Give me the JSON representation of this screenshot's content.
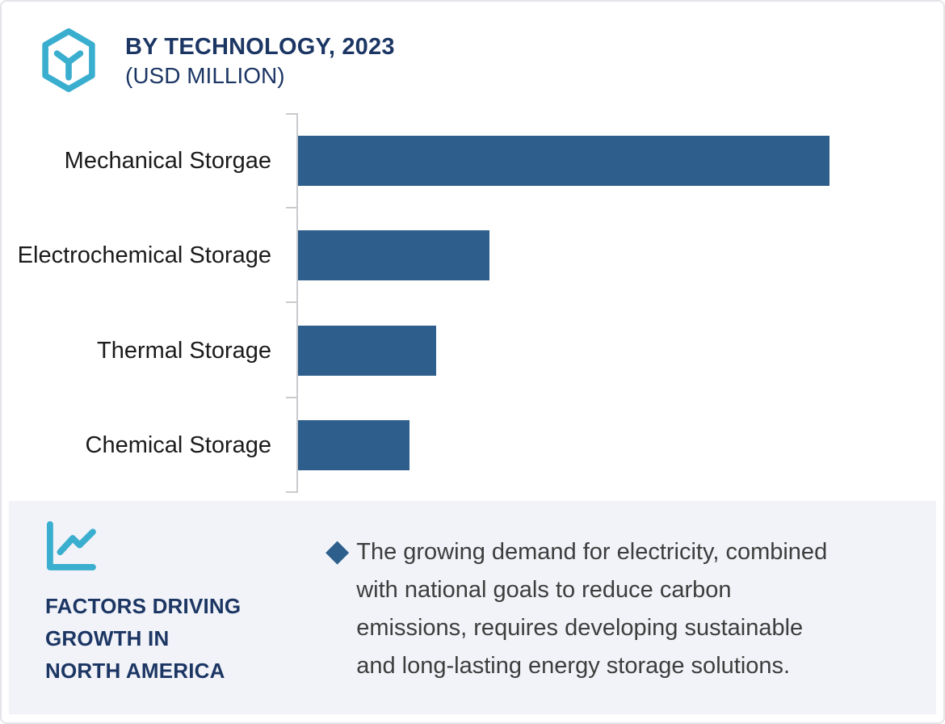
{
  "card": {
    "border_color": "#e3e5e9",
    "background": "#ffffff"
  },
  "header": {
    "icon": "hexagon-y-icon",
    "icon_color": "#3aaecf",
    "title": "BY TECHNOLOGY, 2023",
    "subtitle": "(USD MILLION)",
    "title_color": "#1c3664"
  },
  "chart_data": {
    "type": "bar",
    "orientation": "horizontal",
    "title": "BY TECHNOLOGY, 2023",
    "units": "USD MILLION",
    "categories": [
      "Mechanical Storgae",
      "Electrochemical Storage",
      "Thermal Storage",
      "Chemical Storage"
    ],
    "values": [
      100,
      36,
      26,
      21
    ],
    "values_note": "chart shows no numeric axis or data labels; values estimated as percent of largest bar",
    "xlim": [
      0,
      118
    ],
    "bar_color": "#2d5e8c",
    "axis_color": "#c9cbce",
    "grid": false,
    "legend": false,
    "value_labels": false,
    "tick_count": 5
  },
  "panel": {
    "background": "#f1f3f8",
    "icon": "line-chart-icon",
    "icon_color": "#3aaecf",
    "title_color": "#1c3664",
    "title_lines": [
      "FACTORS DRIVING",
      "GROWTH IN",
      "NORTH AMERICA"
    ],
    "bullet": {
      "marker": "◆",
      "marker_color": "#2d5e8c",
      "text": "The growing demand for electricity, combined with national goals to reduce carbon emissions, requires developing sustainable and long-lasting energy storage solutions.",
      "lines": [
        "The growing demand for electricity, combined",
        "with national goals to reduce carbon",
        "emissions, requires developing sustainable",
        "and long-lasting energy storage solutions."
      ]
    }
  }
}
